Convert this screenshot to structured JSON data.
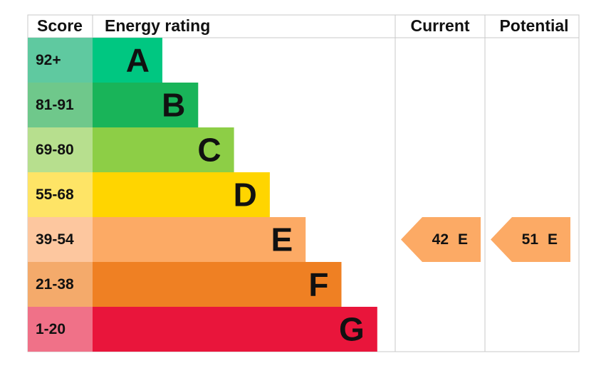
{
  "header": {
    "score": "Score",
    "rating": "Energy rating",
    "current": "Current",
    "potential": "Potential"
  },
  "rows": [
    {
      "score": "92+",
      "band": "A"
    },
    {
      "score": "81-91",
      "band": "B"
    },
    {
      "score": "69-80",
      "band": "C"
    },
    {
      "score": "55-68",
      "band": "D"
    },
    {
      "score": "39-54",
      "band": "E"
    },
    {
      "score": "21-38",
      "band": "F"
    },
    {
      "score": "1-20",
      "band": "G"
    }
  ],
  "current": {
    "value": 42,
    "band": "E"
  },
  "potential": {
    "value": 51,
    "band": "E"
  }
}
